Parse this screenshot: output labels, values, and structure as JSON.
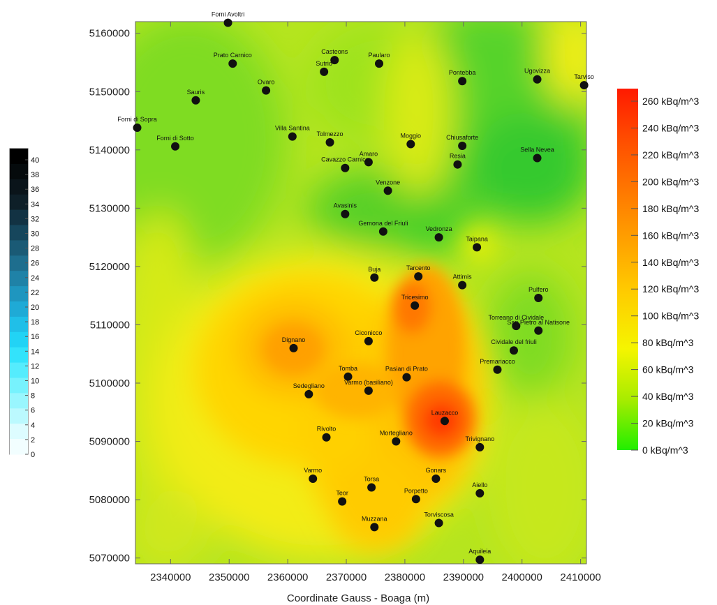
{
  "map": {
    "x_axis_title": "Coordinate Gauss - Boaga (m)",
    "x_ticks": [
      "2340000",
      "2350000",
      "2360000",
      "2370000",
      "2380000",
      "2390000",
      "2400000",
      "2410000"
    ],
    "y_ticks": [
      "5160000",
      "5150000",
      "5140000",
      "5130000",
      "5120000",
      "5110000",
      "5100000",
      "5090000",
      "5080000",
      "5070000"
    ],
    "cities": [
      {
        "name": "Forni Avoltri",
        "x": 2349800,
        "y": 5161800
      },
      {
        "name": "Prato Carnico",
        "x": 2350600,
        "y": 5154800
      },
      {
        "name": "Casteons",
        "x": 2368000,
        "y": 5155400
      },
      {
        "name": "Paularo",
        "x": 2375600,
        "y": 5154800
      },
      {
        "name": "Sutrio",
        "x": 2366200,
        "y": 5153400
      },
      {
        "name": "Pontebba",
        "x": 2389800,
        "y": 5151800
      },
      {
        "name": "Ugovizza",
        "x": 2402600,
        "y": 5152100
      },
      {
        "name": "Tarviso",
        "x": 2410600,
        "y": 5151100
      },
      {
        "name": "Ovaro",
        "x": 2356300,
        "y": 5150200
      },
      {
        "name": "Sauris",
        "x": 2344300,
        "y": 5148500
      },
      {
        "name": "Forni di Sopra",
        "x": 2334300,
        "y": 5143800
      },
      {
        "name": "Forni di Sotto",
        "x": 2340800,
        "y": 5140600
      },
      {
        "name": "Villa Santina",
        "x": 2360800,
        "y": 5142300
      },
      {
        "name": "Tolmezzo",
        "x": 2367200,
        "y": 5141300
      },
      {
        "name": "Moggio",
        "x": 2381000,
        "y": 5141000
      },
      {
        "name": "Chiusaforte",
        "x": 2389800,
        "y": 5140700
      },
      {
        "name": "Sella Nevea",
        "x": 2402600,
        "y": 5138600
      },
      {
        "name": "Amaro",
        "x": 2373800,
        "y": 5137900
      },
      {
        "name": "Cavazzo Carnico",
        "x": 2369800,
        "y": 5136900
      },
      {
        "name": "Resia",
        "x": 2389000,
        "y": 5137500
      },
      {
        "name": "Venzone",
        "x": 2377100,
        "y": 5133000
      },
      {
        "name": "Avasinis",
        "x": 2369800,
        "y": 5129000
      },
      {
        "name": "Gemona del Friuli",
        "x": 2376300,
        "y": 5126000
      },
      {
        "name": "Vedronza",
        "x": 2385800,
        "y": 5125000
      },
      {
        "name": "Taipana",
        "x": 2392300,
        "y": 5123300
      },
      {
        "name": "Buja",
        "x": 2374800,
        "y": 5118100
      },
      {
        "name": "Tarcento",
        "x": 2382300,
        "y": 5118300
      },
      {
        "name": "Attimis",
        "x": 2389800,
        "y": 5116800
      },
      {
        "name": "Pulfero",
        "x": 2402800,
        "y": 5114600
      },
      {
        "name": "Tricesimo",
        "x": 2381700,
        "y": 5113300
      },
      {
        "name": "Torreano di Cividale",
        "x": 2399000,
        "y": 5109800
      },
      {
        "name": "San Pietro al Natisone",
        "x": 2402800,
        "y": 5109000
      },
      {
        "name": "Cividale del friuli",
        "x": 2398600,
        "y": 5105600
      },
      {
        "name": "Dignano",
        "x": 2361000,
        "y": 5106000
      },
      {
        "name": "Ciconicco",
        "x": 2373800,
        "y": 5107200
      },
      {
        "name": "Premariacco",
        "x": 2395800,
        "y": 5102300
      },
      {
        "name": "Tomba",
        "x": 2370300,
        "y": 5101100
      },
      {
        "name": "Pasian di Prato",
        "x": 2380300,
        "y": 5101000
      },
      {
        "name": "Varmo (basiliano)",
        "x": 2373800,
        "y": 5098700
      },
      {
        "name": "Sedegliano",
        "x": 2363600,
        "y": 5098100
      },
      {
        "name": "Lauzacco",
        "x": 2386800,
        "y": 5093500
      },
      {
        "name": "Rivolto",
        "x": 2366600,
        "y": 5090700
      },
      {
        "name": "Mortegliano",
        "x": 2378500,
        "y": 5090000
      },
      {
        "name": "Trivignano",
        "x": 2392800,
        "y": 5089000
      },
      {
        "name": "Varmo",
        "x": 2364300,
        "y": 5083600
      },
      {
        "name": "Gonars",
        "x": 2385300,
        "y": 5083600
      },
      {
        "name": "Torsa",
        "x": 2374300,
        "y": 5082100
      },
      {
        "name": "Aiello",
        "x": 2392800,
        "y": 5081100
      },
      {
        "name": "Teor",
        "x": 2369300,
        "y": 5079700
      },
      {
        "name": "Porpetto",
        "x": 2381900,
        "y": 5080100
      },
      {
        "name": "Muzzana",
        "x": 2374800,
        "y": 5075300
      },
      {
        "name": "Torviscosa",
        "x": 2385800,
        "y": 5076000
      },
      {
        "name": "Aquileia",
        "x": 2392800,
        "y": 5069700
      }
    ]
  },
  "color_scale": {
    "labels": [
      "260 kBq/m^3",
      "240 kBq/m^3",
      "220 kBq/m^3",
      "200 kBq/m^3",
      "180 kBq/m^3",
      "160 kBq/m^3",
      "140 kBq/m^3",
      "120 kBq/m^3",
      "100 kBq/m^3",
      "80 kBq/m^3",
      "60 kBq/m^3",
      "40 kBq/m^3",
      "20 kBq/m^3",
      "0 kBq/m^3"
    ],
    "colors": [
      "#ff2a00",
      "#ff4500",
      "#ff5a00",
      "#ff6e00",
      "#ff8200",
      "#ff9600",
      "#ffaa00",
      "#ffbe00",
      "#ffd200",
      "#ffe600",
      "#f5f500",
      "#cdf000",
      "#8ae800",
      "#33ee00"
    ]
  },
  "left_scale": {
    "labels": [
      "40",
      "38",
      "36",
      "34",
      "32",
      "30",
      "28",
      "26",
      "24",
      "22",
      "20",
      "18",
      "16",
      "14",
      "12",
      "10",
      "8",
      "6",
      "4",
      "2",
      "0"
    ],
    "colors": [
      "#000000",
      "#050a0c",
      "#0a141a",
      "#0e1f28",
      "#123243",
      "#16465c",
      "#1a5a75",
      "#1e6e8e",
      "#1f82a7",
      "#1f96bf",
      "#1faad6",
      "#20bfe8",
      "#22d3f5",
      "#33e3fb",
      "#55ecfd",
      "#77f2fd",
      "#99f6fe",
      "#bbf9fe",
      "#ddfcff",
      "#f2feff"
    ]
  }
}
